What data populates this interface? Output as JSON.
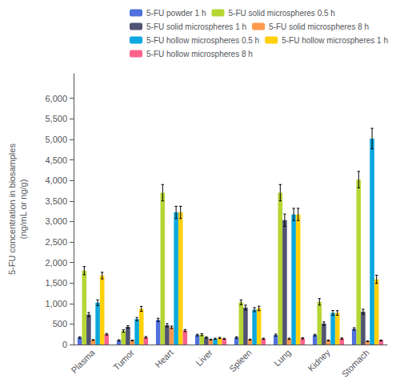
{
  "chart_data": {
    "type": "bar",
    "categories": [
      "Plasma",
      "Tumor",
      "Heart",
      "Liver",
      "Spleen",
      "Lung",
      "Kidney",
      "Stomach"
    ],
    "series": [
      {
        "name": "5-FU powder 1 h",
        "values": [
          170,
          100,
          600,
          230,
          170,
          230,
          230,
          380
        ],
        "errors": [
          20,
          15,
          40,
          20,
          20,
          25,
          20,
          30
        ]
      },
      {
        "name": "5-FU solid microspheres 0.5 h",
        "values": [
          1800,
          330,
          3700,
          240,
          1030,
          3700,
          1040,
          4020
        ],
        "errors": [
          100,
          30,
          200,
          25,
          60,
          200,
          80,
          200
        ]
      },
      {
        "name": "5-FU solid microspheres 1 h",
        "values": [
          730,
          430,
          470,
          170,
          900,
          3030,
          510,
          800
        ],
        "errors": [
          50,
          30,
          40,
          15,
          60,
          150,
          40,
          60
        ]
      },
      {
        "name": "5-FU solid microspheres 8 h",
        "values": [
          110,
          100,
          420,
          120,
          120,
          140,
          100,
          80
        ],
        "errors": [
          10,
          10,
          30,
          10,
          10,
          15,
          10,
          8
        ]
      },
      {
        "name": "5-FU hollow microspheres 0.5 h",
        "values": [
          1020,
          620,
          3220,
          140,
          850,
          3170,
          770,
          5020
        ],
        "errors": [
          70,
          40,
          150,
          15,
          50,
          150,
          60,
          250
        ]
      },
      {
        "name": "5-FU hollow microspheres 1 h",
        "values": [
          1680,
          870,
          3220,
          160,
          880,
          3170,
          770,
          1590
        ],
        "errors": [
          80,
          60,
          150,
          15,
          55,
          150,
          55,
          100
        ]
      },
      {
        "name": "5-FU hollow microspheres 8 h",
        "values": [
          250,
          175,
          340,
          140,
          140,
          150,
          145,
          100
        ],
        "errors": [
          20,
          20,
          25,
          12,
          15,
          15,
          15,
          10
        ]
      }
    ],
    "ylabel": "5-FU concentration in biosamples\n(ng/mL or ng/g)",
    "ylim": [
      0,
      6600
    ],
    "yticks": [
      0,
      500,
      {
        "value": 1000,
        "label": "1,000"
      },
      {
        "value": 1500,
        "label": "1,500"
      },
      {
        "value": 2000,
        "label": "2,000"
      },
      {
        "value": 2500,
        "label": "2,500"
      },
      {
        "value": 3000,
        "label": "3,000"
      },
      {
        "value": 3500,
        "label": "3,500"
      },
      {
        "value": 4000,
        "label": "4,000"
      },
      {
        "value": 4500,
        "label": "4,500"
      },
      {
        "value": 5000,
        "label": "5,000"
      },
      {
        "value": 5500,
        "label": "5,500"
      },
      {
        "value": 6000,
        "label": "6,000"
      }
    ],
    "legend": "upper right",
    "grid": false
  }
}
